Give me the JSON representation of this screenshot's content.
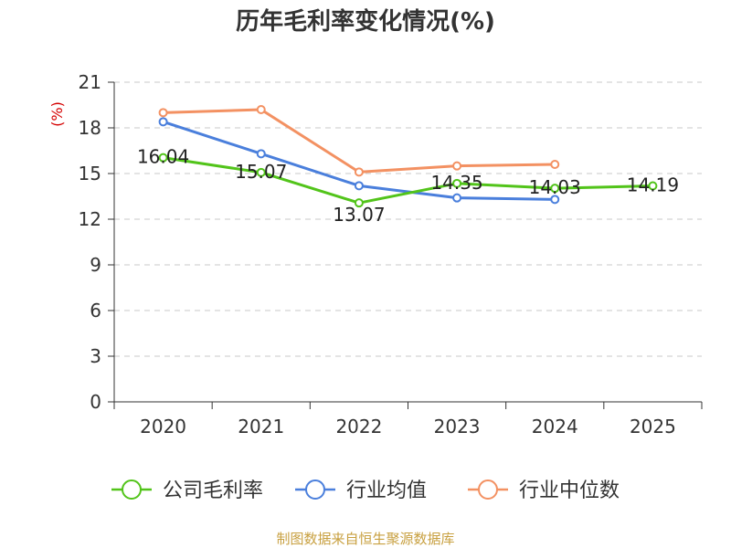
{
  "chart_data": {
    "type": "line",
    "title": "历年毛利率变化情况(%)",
    "ylabel": "(%)",
    "xlabel": "",
    "categories": [
      "2020",
      "2021",
      "2022",
      "2023",
      "2024",
      "2025"
    ],
    "ylim": [
      0,
      21
    ],
    "yticks": [
      0,
      3,
      6,
      9,
      12,
      15,
      18,
      21
    ],
    "grid": true,
    "legend_position": "bottom",
    "series": [
      {
        "name": "公司毛利率",
        "color": "#52c41a",
        "values": [
          16.04,
          15.07,
          13.07,
          14.35,
          14.03,
          14.19
        ],
        "labels": [
          "16.04",
          "15.07",
          "13.07",
          "14.35",
          "14.03",
          "14.19"
        ]
      },
      {
        "name": "行业均值",
        "color": "#4a7fdc",
        "values": [
          18.4,
          16.3,
          14.2,
          13.4,
          13.3,
          null
        ]
      },
      {
        "name": "行业中位数",
        "color": "#f39162",
        "values": [
          19.0,
          19.2,
          15.1,
          15.5,
          15.6,
          null
        ]
      }
    ],
    "source": "制图数据来自恒生聚源数据库"
  }
}
